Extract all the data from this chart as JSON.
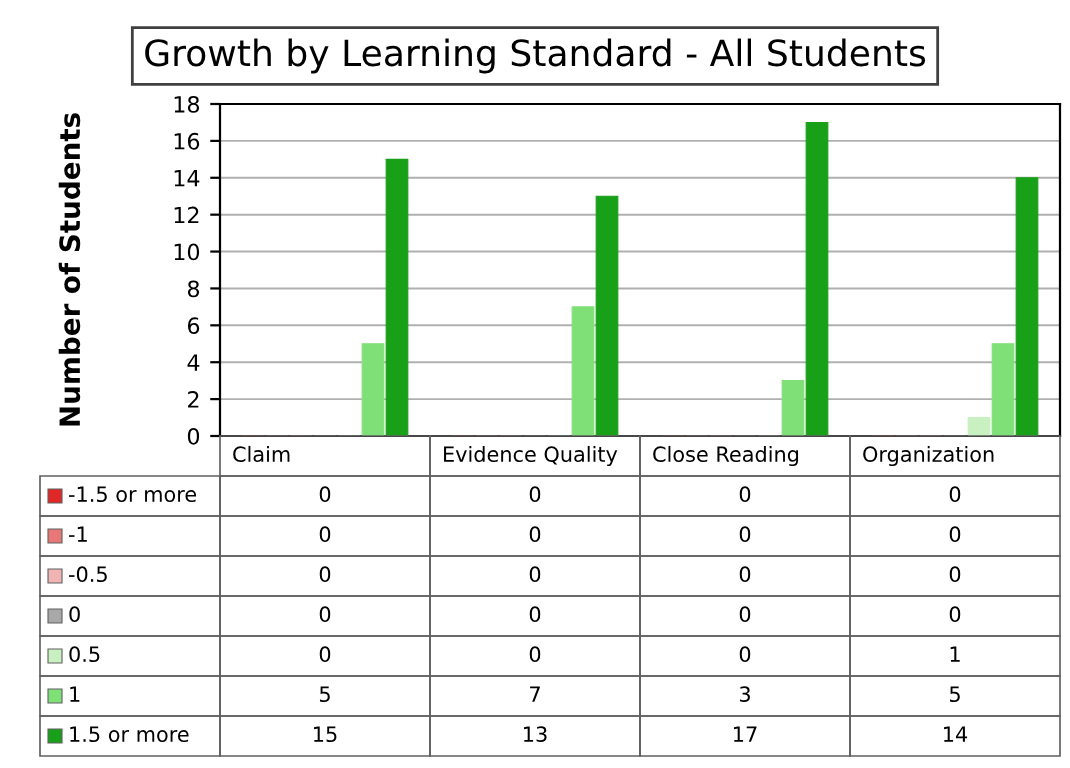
{
  "chart_data": {
    "type": "bar",
    "title": "Growth by Learning Standard - All Students",
    "ylabel": "Number of Students",
    "categories": [
      "Claim",
      "Evidence Quality",
      "Close Reading",
      "Organization"
    ],
    "series": [
      {
        "name": "-1.5 or more",
        "color": "#e02828",
        "values": [
          0,
          0,
          0,
          0
        ]
      },
      {
        "name": "-1",
        "color": "#e87878",
        "values": [
          0,
          0,
          0,
          0
        ]
      },
      {
        "name": "-0.5",
        "color": "#f0b4b4",
        "values": [
          0,
          0,
          0,
          0
        ]
      },
      {
        "name": "0",
        "color": "#a8a8a8",
        "values": [
          0,
          0,
          0,
          0
        ]
      },
      {
        "name": "0.5",
        "color": "#c8f0c0",
        "values": [
          0,
          0,
          0,
          1
        ]
      },
      {
        "name": "1",
        "color": "#80e078",
        "values": [
          5,
          7,
          3,
          5
        ]
      },
      {
        "name": "1.5 or more",
        "color": "#18a018",
        "values": [
          15,
          13,
          17,
          14
        ]
      }
    ],
    "ylim": [
      0,
      18
    ],
    "yticks": [
      0,
      2,
      4,
      6,
      8,
      10,
      12,
      14,
      16,
      18
    ],
    "grid": "y",
    "data_labels": true,
    "legend": "bottom"
  }
}
